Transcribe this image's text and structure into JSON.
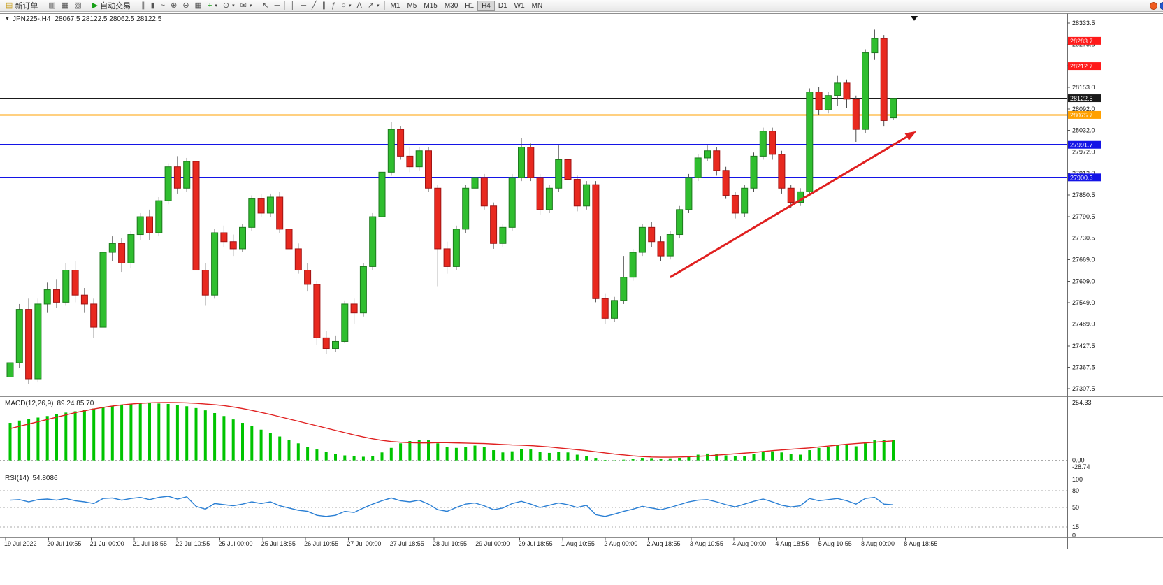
{
  "toolbar": {
    "caret_glyph": "▾",
    "groups": [
      {
        "name": "order",
        "items": [
          {
            "name": "new-order-button",
            "label": "新订单",
            "glyph": "▤",
            "glyph_color": "#c9a227"
          }
        ]
      },
      {
        "name": "windows",
        "items": [
          {
            "name": "market-watch-icon",
            "glyph": "▥"
          },
          {
            "name": "data-window-icon",
            "glyph": "▦"
          },
          {
            "name": "navigator-icon",
            "glyph": "▧"
          }
        ]
      },
      {
        "name": "autotrade",
        "items": [
          {
            "name": "auto-trading-button",
            "label": "自动交易",
            "glyph": "▶",
            "glyph_color": "#18a018"
          }
        ]
      },
      {
        "name": "chart-tools",
        "items": [
          {
            "name": "bar-chart-icon",
            "glyph": "∥"
          },
          {
            "name": "candlestick-chart-icon",
            "glyph": "▮"
          },
          {
            "name": "line-chart-icon",
            "glyph": "~"
          },
          {
            "name": "zoom-in-icon",
            "glyph": "⊕"
          },
          {
            "name": "zoom-out-icon",
            "glyph": "⊖"
          },
          {
            "name": "tile-windows-icon",
            "glyph": "▦"
          },
          {
            "name": "indicators-icon",
            "glyph": "+",
            "glyph_color": "#18a018",
            "caret": true
          },
          {
            "name": "periods-icon",
            "glyph": "⊙",
            "caret": true
          },
          {
            "name": "templates-icon",
            "glyph": "✉",
            "caret": true
          }
        ]
      },
      {
        "name": "cursor-tools",
        "items": [
          {
            "name": "cursor-icon",
            "glyph": "↖"
          },
          {
            "name": "crosshair-icon",
            "glyph": "┼"
          }
        ]
      },
      {
        "name": "draw-tools",
        "items": [
          {
            "name": "vertical-line-icon",
            "glyph": "│"
          },
          {
            "name": "horizontal-line-icon",
            "glyph": "─"
          },
          {
            "name": "trendline-icon",
            "glyph": "╱"
          },
          {
            "name": "channel-icon",
            "glyph": "∥"
          },
          {
            "name": "fibonacci-icon",
            "glyph": "ƒ"
          },
          {
            "name": "shapes-icon",
            "glyph": "○",
            "caret": true
          },
          {
            "name": "text-icon",
            "glyph": "A"
          },
          {
            "name": "arrow-objects-icon",
            "glyph": "↗",
            "caret": true
          }
        ]
      }
    ],
    "timeframes": [
      "M1",
      "M5",
      "M15",
      "M30",
      "H1",
      "H4",
      "D1",
      "W1",
      "MN"
    ],
    "active_timeframe": "H4",
    "status_dots": [
      {
        "name": "status-orange-dot",
        "color": "#f05a1e"
      },
      {
        "name": "status-blue-dot",
        "color": "#2255cc"
      }
    ]
  },
  "chart": {
    "caret_glyph": "▼",
    "title": "JPN225-,H4",
    "ohlc": "28067.5 28122.5 28062.5 28122.5"
  },
  "chart_data": {
    "type": "candlestick",
    "symbol": "JPN225-",
    "timeframe": "H4",
    "current_price": 28122.5,
    "colors": {
      "up": "#2fbe2f",
      "up_border": "#1d7a1d",
      "down": "#e8291f",
      "down_border": "#a11414",
      "wick": "#4d4d4d",
      "macd_hist": "#00c400",
      "macd_signal": "#e02020",
      "rsi_line": "#2a7fd4",
      "level_red": "#ff1a1a",
      "level_blue": "#1414e6",
      "level_orange": "#ffa000",
      "level_black": "#1a1a1a"
    },
    "price_axis_ticks": [
      28333.5,
      28273.5,
      28213.5,
      28153.0,
      28092.0,
      28032.0,
      27972.0,
      27912.0,
      27850.5,
      27790.5,
      27730.5,
      27669.0,
      27609.0,
      27549.0,
      27489.0,
      27427.5,
      27367.5,
      27307.5
    ],
    "levels": [
      {
        "price": 28283.7,
        "label": "28283.7",
        "color": "#ff1a1a",
        "line_width": 1
      },
      {
        "price": 28212.7,
        "label": "28212.7",
        "color": "#ff1a1a",
        "line_width": 1
      },
      {
        "price": 28122.5,
        "label": "28122.5",
        "color": "#1a1a1a",
        "line_width": 1,
        "is_current": true
      },
      {
        "price": 28075.7,
        "label": "28075.7",
        "color": "#ffa000",
        "line_width": 2
      },
      {
        "price": 27991.7,
        "label": "27991.7",
        "color": "#1414e6",
        "line_width": 2
      },
      {
        "price": 27900.3,
        "label": "27900.3",
        "color": "#1414e6",
        "line_width": 2
      }
    ],
    "trend_arrow": {
      "from_index": 71,
      "from_price": 27620,
      "to_index": 97.5,
      "to_price": 28030,
      "color": "#e02020",
      "width": 3
    },
    "candles": [
      [
        27340,
        27395,
        27315,
        27380
      ],
      [
        27380,
        27545,
        27365,
        27530
      ],
      [
        27530,
        27560,
        27320,
        27335
      ],
      [
        27335,
        27560,
        27325,
        27545
      ],
      [
        27545,
        27605,
        27520,
        27585
      ],
      [
        27585,
        27615,
        27535,
        27550
      ],
      [
        27550,
        27660,
        27540,
        27640
      ],
      [
        27640,
        27665,
        27550,
        27570
      ],
      [
        27570,
        27590,
        27520,
        27545
      ],
      [
        27545,
        27560,
        27450,
        27480
      ],
      [
        27480,
        27700,
        27470,
        27690
      ],
      [
        27690,
        27735,
        27665,
        27715
      ],
      [
        27715,
        27730,
        27635,
        27660
      ],
      [
        27660,
        27750,
        27645,
        27740
      ],
      [
        27740,
        27800,
        27725,
        27790
      ],
      [
        27790,
        27810,
        27725,
        27745
      ],
      [
        27745,
        27845,
        27735,
        27835
      ],
      [
        27835,
        27940,
        27825,
        27930
      ],
      [
        27930,
        27960,
        27855,
        27870
      ],
      [
        27870,
        27955,
        27860,
        27945
      ],
      [
        27945,
        27950,
        27620,
        27640
      ],
      [
        27640,
        27660,
        27540,
        27570
      ],
      [
        27570,
        27755,
        27560,
        27745
      ],
      [
        27745,
        27765,
        27705,
        27720
      ],
      [
        27720,
        27740,
        27680,
        27700
      ],
      [
        27700,
        27770,
        27690,
        27760
      ],
      [
        27760,
        27850,
        27750,
        27840
      ],
      [
        27840,
        27855,
        27790,
        27800
      ],
      [
        27800,
        27855,
        27790,
        27845
      ],
      [
        27845,
        27860,
        27745,
        27755
      ],
      [
        27755,
        27770,
        27690,
        27700
      ],
      [
        27700,
        27715,
        27630,
        27640
      ],
      [
        27640,
        27660,
        27580,
        27600
      ],
      [
        27600,
        27610,
        27430,
        27450
      ],
      [
        27450,
        27470,
        27405,
        27420
      ],
      [
        27420,
        27455,
        27410,
        27440
      ],
      [
        27440,
        27555,
        27435,
        27545
      ],
      [
        27545,
        27560,
        27490,
        27520
      ],
      [
        27520,
        27660,
        27510,
        27650
      ],
      [
        27650,
        27800,
        27640,
        27790
      ],
      [
        27790,
        27925,
        27780,
        27915
      ],
      [
        27915,
        28055,
        27905,
        28035
      ],
      [
        28035,
        28045,
        27950,
        27960
      ],
      [
        27960,
        27985,
        27915,
        27930
      ],
      [
        27930,
        27985,
        27920,
        27975
      ],
      [
        27975,
        27985,
        27860,
        27870
      ],
      [
        27870,
        27880,
        27595,
        27700
      ],
      [
        27700,
        27720,
        27630,
        27650
      ],
      [
        27650,
        27765,
        27640,
        27755
      ],
      [
        27755,
        27880,
        27745,
        27870
      ],
      [
        27870,
        27915,
        27855,
        27900
      ],
      [
        27900,
        27910,
        27810,
        27820
      ],
      [
        27820,
        27830,
        27700,
        27715
      ],
      [
        27715,
        27770,
        27705,
        27760
      ],
      [
        27760,
        27910,
        27750,
        27900
      ],
      [
        27900,
        28010,
        27890,
        27985
      ],
      [
        27985,
        27995,
        27890,
        27900
      ],
      [
        27900,
        27910,
        27795,
        27810
      ],
      [
        27810,
        27880,
        27800,
        27870
      ],
      [
        27870,
        27990,
        27860,
        27950
      ],
      [
        27950,
        27960,
        27880,
        27895
      ],
      [
        27895,
        27905,
        27805,
        27820
      ],
      [
        27820,
        27890,
        27810,
        27880
      ],
      [
        27880,
        27890,
        27550,
        27560
      ],
      [
        27560,
        27575,
        27490,
        27505
      ],
      [
        27505,
        27565,
        27495,
        27555
      ],
      [
        27555,
        27680,
        27545,
        27620
      ],
      [
        27620,
        27700,
        27610,
        27690
      ],
      [
        27690,
        27770,
        27680,
        27760
      ],
      [
        27760,
        27775,
        27705,
        27720
      ],
      [
        27720,
        27735,
        27665,
        27680
      ],
      [
        27680,
        27750,
        27670,
        27740
      ],
      [
        27740,
        27820,
        27730,
        27810
      ],
      [
        27810,
        27910,
        27800,
        27900
      ],
      [
        27900,
        27965,
        27890,
        27955
      ],
      [
        27955,
        27990,
        27945,
        27975
      ],
      [
        27975,
        27985,
        27905,
        27920
      ],
      [
        27920,
        27930,
        27840,
        27850
      ],
      [
        27850,
        27860,
        27785,
        27800
      ],
      [
        27800,
        27880,
        27790,
        27870
      ],
      [
        27870,
        27970,
        27860,
        27960
      ],
      [
        27960,
        28040,
        27950,
        28030
      ],
      [
        28030,
        28040,
        27950,
        27965
      ],
      [
        27965,
        27975,
        27855,
        27870
      ],
      [
        27870,
        27880,
        27815,
        27830
      ],
      [
        27830,
        27870,
        27820,
        27860
      ],
      [
        27860,
        28150,
        27850,
        28140
      ],
      [
        28140,
        28155,
        28075,
        28090
      ],
      [
        28090,
        28140,
        28080,
        28130
      ],
      [
        28130,
        28185,
        28100,
        28165
      ],
      [
        28165,
        28175,
        28095,
        28120
      ],
      [
        28120,
        28130,
        28000,
        28035
      ],
      [
        28035,
        28260,
        28025,
        28250
      ],
      [
        28250,
        28315,
        28230,
        28290
      ],
      [
        28290,
        28300,
        28045,
        28060
      ],
      [
        28067.5,
        28122.5,
        28062.5,
        28122.5
      ]
    ],
    "time_labels": [
      "19 Jul 2022",
      "20 Jul 10:55",
      "21 Jul 00:00",
      "21 Jul 18:55",
      "22 Jul 10:55",
      "25 Jul 00:00",
      "25 Jul 18:55",
      "26 Jul 10:55",
      "27 Jul 00:00",
      "27 Jul 18:55",
      "28 Jul 10:55",
      "29 Jul 00:00",
      "29 Jul 18:55",
      "1 Aug 10:55",
      "2 Aug 00:00",
      "2 Aug 18:55",
      "3 Aug 10:55",
      "4 Aug 00:00",
      "4 Aug 18:55",
      "5 Aug 10:55",
      "8 Aug 00:00",
      "8 Aug 18:55"
    ],
    "macd": {
      "label": "MACD(12,26,9)",
      "values_label": "89.24 85.70",
      "max": 254.33,
      "min": -28.74,
      "axis_ticks": [
        {
          "value": 254.33,
          "label": "254.33"
        },
        {
          "value": 0,
          "label": "0.00"
        },
        {
          "value": -28.74,
          "label": "-28.74"
        }
      ],
      "histogram": [
        165,
        175,
        182,
        188,
        195,
        202,
        210,
        216,
        222,
        228,
        234,
        240,
        244,
        248,
        250,
        252,
        250,
        248,
        244,
        238,
        230,
        220,
        208,
        195,
        180,
        165,
        150,
        135,
        120,
        105,
        90,
        75,
        60,
        48,
        38,
        28,
        22,
        18,
        16,
        20,
        35,
        55,
        75,
        85,
        90,
        88,
        75,
        60,
        55,
        60,
        65,
        60,
        45,
        35,
        40,
        50,
        48,
        38,
        33,
        38,
        35,
        25,
        20,
        8,
        2,
        1,
        3,
        5,
        8,
        7,
        5,
        6,
        10,
        18,
        25,
        30,
        28,
        22,
        18,
        20,
        28,
        38,
        40,
        35,
        28,
        25,
        45,
        55,
        60,
        68,
        70,
        62,
        75,
        88,
        90,
        89.24
      ],
      "signal": [
        140,
        150,
        160,
        170,
        180,
        190,
        200,
        210,
        218,
        226,
        233,
        239,
        244,
        248,
        251,
        253,
        254,
        254.3,
        254,
        253,
        251,
        248,
        245,
        241,
        235,
        228,
        220,
        211,
        202,
        192,
        182,
        172,
        162,
        152,
        142,
        132,
        122,
        112,
        103,
        95,
        88,
        83,
        80,
        78,
        77,
        77,
        78,
        78,
        77,
        76,
        75,
        74,
        72,
        70,
        68,
        67,
        65,
        62,
        59,
        55,
        51,
        47,
        43,
        38,
        33,
        28,
        24,
        20,
        17,
        15,
        14,
        14,
        15,
        16,
        18,
        20,
        23,
        26,
        29,
        32,
        35,
        39,
        43,
        46,
        49,
        52,
        55,
        59,
        63,
        67,
        71,
        74,
        77,
        80,
        83,
        85.7
      ]
    },
    "rsi": {
      "label": "RSI(14)",
      "value_label": "54.8086",
      "levels": [
        80,
        50,
        15
      ],
      "axis_ticks": [
        {
          "value": 100,
          "label": "100"
        },
        {
          "value": 80,
          "label": "80"
        },
        {
          "value": 50,
          "label": "50"
        },
        {
          "value": 15,
          "label": "15"
        },
        {
          "value": 0,
          "label": "0"
        }
      ],
      "values": [
        63,
        64,
        60,
        64,
        65,
        63,
        66,
        62,
        60,
        57,
        66,
        67,
        63,
        66,
        68,
        64,
        68,
        70,
        65,
        69,
        52,
        47,
        57,
        55,
        53,
        56,
        60,
        57,
        60,
        53,
        49,
        45,
        43,
        36,
        34,
        36,
        43,
        41,
        49,
        56,
        62,
        67,
        62,
        60,
        63,
        56,
        46,
        43,
        50,
        56,
        58,
        53,
        46,
        49,
        57,
        61,
        56,
        50,
        54,
        58,
        55,
        50,
        54,
        37,
        34,
        38,
        43,
        47,
        52,
        49,
        46,
        50,
        55,
        60,
        63,
        64,
        60,
        55,
        51,
        56,
        61,
        65,
        60,
        54,
        51,
        53,
        66,
        62,
        64,
        66,
        62,
        56,
        66,
        68,
        56,
        54.81
      ]
    }
  }
}
